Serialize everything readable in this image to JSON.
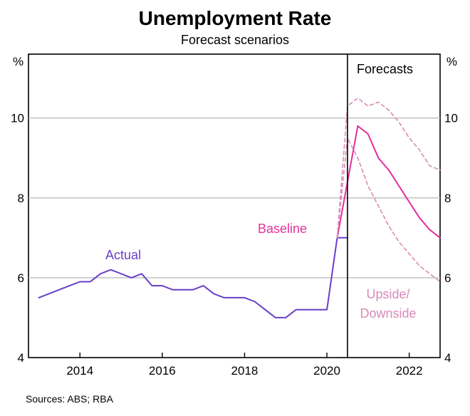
{
  "title": "Unemployment Rate",
  "subtitle": "Forecast scenarios",
  "source": "Sources: ABS; RBA",
  "chart_data": {
    "type": "line",
    "title": "Unemployment Rate",
    "subtitle": "Forecast scenarios",
    "ylabel_left": "%",
    "ylabel_right": "%",
    "ylim": [
      4,
      11.6
    ],
    "xlim": [
      2012.75,
      2022.75
    ],
    "yticks": [
      4,
      6,
      8,
      10
    ],
    "xticks": [
      2014,
      2016,
      2018,
      2020,
      2022
    ],
    "x_tick_labels": [
      "2014",
      "2016",
      "2018",
      "2020",
      "2022"
    ],
    "grid": "horizontal",
    "forecast_divider_x": 2020.5,
    "forecast_label": "Forecasts",
    "colors": {
      "actual": "#6a3fc8",
      "baseline": "#e3309a",
      "scenario": "#d98ab8"
    },
    "series": [
      {
        "name": "Actual",
        "style": "solid",
        "color": "#6a3fc8",
        "x": [
          2013.0,
          2013.25,
          2013.5,
          2013.75,
          2014.0,
          2014.25,
          2014.5,
          2014.75,
          2015.0,
          2015.25,
          2015.5,
          2015.75,
          2016.0,
          2016.25,
          2016.5,
          2016.75,
          2017.0,
          2017.25,
          2017.5,
          2017.75,
          2018.0,
          2018.25,
          2018.5,
          2018.75,
          2019.0,
          2019.25,
          2019.5,
          2019.75,
          2020.0,
          2020.25,
          2020.5
        ],
        "y": [
          5.5,
          5.6,
          5.7,
          5.8,
          5.9,
          5.9,
          6.1,
          6.2,
          6.1,
          6.0,
          6.1,
          5.8,
          5.8,
          5.7,
          5.7,
          5.7,
          5.8,
          5.6,
          5.5,
          5.5,
          5.5,
          5.4,
          5.2,
          5.0,
          5.0,
          5.2,
          5.2,
          5.2,
          5.2,
          7.0,
          7.0
        ]
      },
      {
        "name": "Baseline",
        "style": "solid",
        "color": "#e3309a",
        "x": [
          2020.25,
          2020.75,
          2021.0,
          2021.25,
          2021.5,
          2021.75,
          2022.0,
          2022.25,
          2022.5,
          2022.75
        ],
        "y": [
          7.0,
          9.8,
          9.6,
          9.0,
          8.7,
          8.3,
          7.9,
          7.5,
          7.2,
          7.0
        ]
      },
      {
        "name": "Upside/ Downside",
        "style": "dashed",
        "color": "#d98ab8",
        "x": [
          2020.25,
          2020.5,
          2020.75,
          2021.0,
          2021.25,
          2021.5,
          2021.75,
          2022.0,
          2022.25,
          2022.5,
          2022.75
        ],
        "y": [
          7.0,
          10.3,
          10.5,
          10.3,
          10.4,
          10.2,
          9.9,
          9.5,
          9.2,
          8.8,
          8.7
        ]
      },
      {
        "name": "",
        "style": "dashed",
        "color": "#d98ab8",
        "x": [
          2020.25,
          2020.5,
          2020.75,
          2021.0,
          2021.25,
          2021.5,
          2021.75,
          2022.0,
          2022.25,
          2022.5,
          2022.75
        ],
        "y": [
          7.0,
          9.5,
          9.0,
          8.3,
          7.8,
          7.3,
          6.9,
          6.6,
          6.3,
          6.1,
          5.9
        ]
      }
    ]
  }
}
